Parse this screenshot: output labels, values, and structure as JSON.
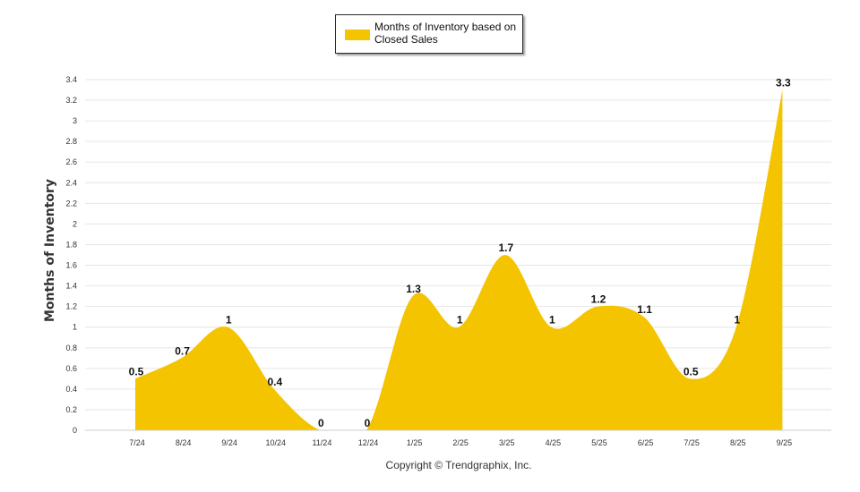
{
  "chart_data": {
    "type": "area",
    "categories": [
      "7/24",
      "8/24",
      "9/24",
      "10/24",
      "11/24",
      "12/24",
      "1/25",
      "2/25",
      "3/25",
      "4/25",
      "5/25",
      "6/25",
      "7/25",
      "8/25",
      "9/25"
    ],
    "series": [
      {
        "name": "Months of Inventory based on Closed Sales",
        "values": [
          0.5,
          0.7,
          1,
          0.4,
          0,
          0,
          1.3,
          1,
          1.7,
          1,
          1.2,
          1.1,
          0.5,
          1,
          3.3
        ]
      }
    ],
    "data_labels": [
      "0.5",
      "0.7",
      "1",
      "0.4",
      "0",
      "0",
      "1.3",
      "1",
      "1.7",
      "1",
      "1.2",
      "1.1",
      "0.5",
      "1",
      "3.3"
    ],
    "yticks": [
      "0",
      "0.2",
      "0.4",
      "0.6",
      "0.8",
      "1",
      "1.2",
      "1.4",
      "1.6",
      "1.8",
      "2",
      "2.2",
      "2.4",
      "2.6",
      "2.8",
      "3",
      "3.2",
      "3.4"
    ],
    "ylim": [
      0,
      3.4
    ],
    "ylabel": "Months of Inventory",
    "xlabel": "",
    "grid": true,
    "legend_position": "top-center",
    "footer": "Copyright © Trendgraphix, Inc.",
    "colors": {
      "area": "#f5c400",
      "grid": "#e6e6e6",
      "axis": "#cccccc"
    }
  },
  "legend": {
    "label": "Months of Inventory based on Closed Sales",
    "swatch_color": "#f5c400"
  }
}
